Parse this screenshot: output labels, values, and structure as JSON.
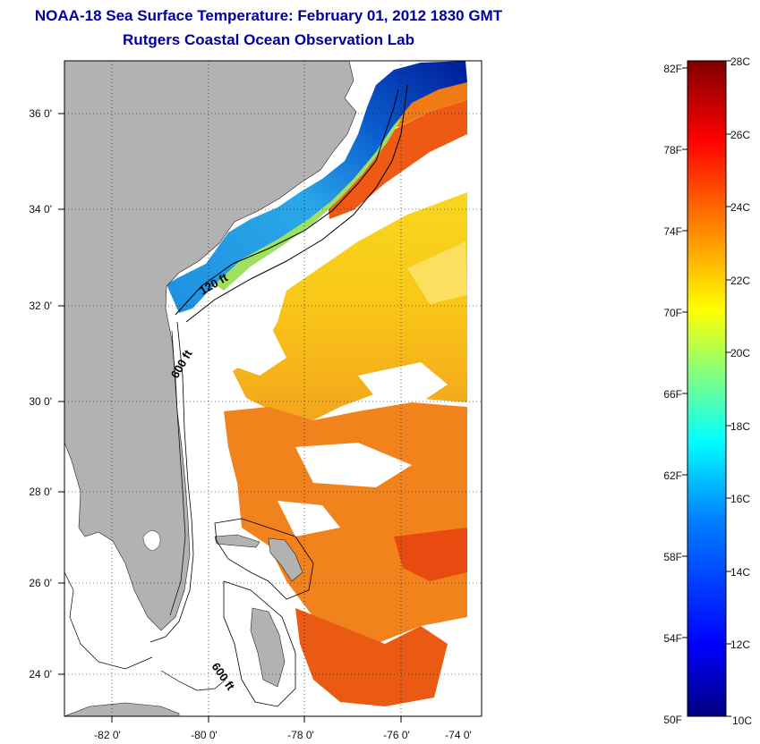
{
  "titles": {
    "line1": "NOAA-18 Sea Surface Temperature:  February 01, 2012 1830 GMT",
    "line2": "Rutgers Coastal Ocean Observation Lab"
  },
  "axes": {
    "lon_labels": [
      "-82 0'",
      "-80 0'",
      "-78 0'",
      "-76 0'",
      "-74 0'"
    ],
    "lat_labels": [
      "36 0'",
      "34 0'",
      "32 0'",
      "30 0'",
      "28 0'",
      "26 0'",
      "24 0'"
    ]
  },
  "contour_labels": {
    "c120": "120 ft",
    "c600a": "600 ft",
    "c600b": "600 ft"
  },
  "colorbar": {
    "fahrenheit": [
      "82F",
      "78F",
      "74F",
      "70F",
      "66F",
      "62F",
      "58F",
      "54F",
      "50F"
    ],
    "celsius": [
      "28C",
      "26C",
      "24C",
      "22C",
      "20C",
      "18C",
      "16C",
      "14C",
      "12C",
      "10C"
    ],
    "gradient_stops": [
      "#00007f",
      "#0000ff",
      "#0080ff",
      "#00ffff",
      "#80ff80",
      "#ffff00",
      "#ff8000",
      "#ff0000",
      "#7f0000"
    ]
  },
  "colors": {
    "title": "#0000a0",
    "land": "#b2b2b2",
    "warm_water": "#f5d020",
    "gulfstream": "#f06a10",
    "shelf_cold": "#1f6fd8",
    "cloud": "#ffffff"
  }
}
